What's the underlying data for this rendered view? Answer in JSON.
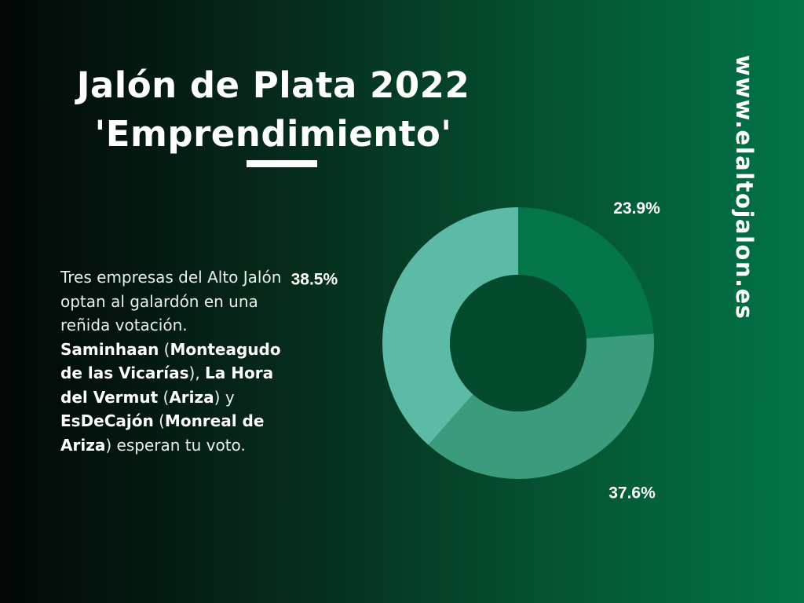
{
  "title": {
    "line1": "Jalón de Plata 2022",
    "line2": "'Emprendimiento'"
  },
  "website": "www.elaltojalon.es",
  "description": {
    "intro": "Tres empresas del Alto Jalón optan al galardón en una reñida votación.",
    "company1": "Saminhaan",
    "company1_place": "Monteagudo de las Vicarías",
    "company2": "La Hora del Vermut",
    "company2_place": "Ariza",
    "company3": "EsDeCajón",
    "company3_place": "Monreal de Ariza",
    "outro": "esperan tu voto."
  },
  "colors": {
    "background_dark": "#020705",
    "background_green": "#027447",
    "slice_1": "#05754a",
    "slice_2": "#3a9c7c",
    "slice_3": "#5bbba6",
    "hole": "#044a2d"
  },
  "chart_data": {
    "type": "pie",
    "donut": true,
    "start_angle_deg": 0,
    "direction": "clockwise",
    "values": [
      23.9,
      37.6,
      38.5
    ],
    "labels": [
      "23.9%",
      "37.6%",
      "38.5%"
    ],
    "colors": [
      "#05754a",
      "#3a9c7c",
      "#5bbba6"
    ]
  }
}
